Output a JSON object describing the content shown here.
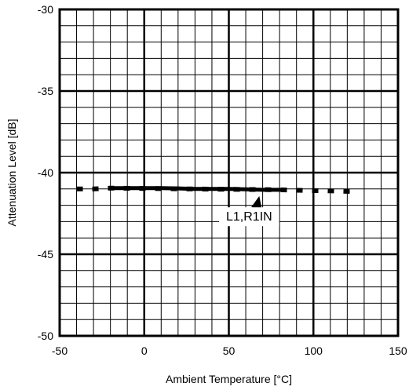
{
  "chart_data": {
    "type": "line",
    "title": "",
    "xlabel": "Ambient Temperature [°C]",
    "ylabel": "Attenuation Level [dB]",
    "xlim": [
      -50,
      150
    ],
    "ylim": [
      -50,
      -30
    ],
    "x_ticks": [
      "-50",
      "0",
      "50",
      "100",
      "150"
    ],
    "y_ticks": [
      "-30",
      "-35",
      "-40",
      "-45",
      "-50"
    ],
    "x_tick_values": [
      -50,
      0,
      50,
      100,
      150
    ],
    "y_tick_values": [
      -30,
      -35,
      -40,
      -45,
      -50
    ],
    "x_minor_step": 10,
    "y_minor_step": 1,
    "grid": true,
    "annotation": {
      "text": "L1,R1IN",
      "x": 62,
      "y": -41.5,
      "arrow_to_x": 68,
      "arrow_to_y": -41.05
    },
    "series": [
      {
        "name": "L1,R1IN",
        "solid": {
          "x": [
            -20,
            -10,
            0,
            10,
            20,
            30,
            40,
            50,
            60,
            70,
            80
          ],
          "y": [
            -40.95,
            -40.95,
            -40.95,
            -40.95,
            -40.97,
            -41.0,
            -41.0,
            -41.0,
            -41.02,
            -41.05,
            -41.05
          ]
        },
        "dashed": {
          "x": [
            -40,
            -30,
            -20,
            80,
            90,
            100,
            110,
            120,
            125
          ],
          "y": [
            -41.0,
            -41.0,
            -40.95,
            -41.05,
            -41.08,
            -41.1,
            -41.12,
            -41.15,
            -41.15
          ]
        }
      }
    ]
  }
}
